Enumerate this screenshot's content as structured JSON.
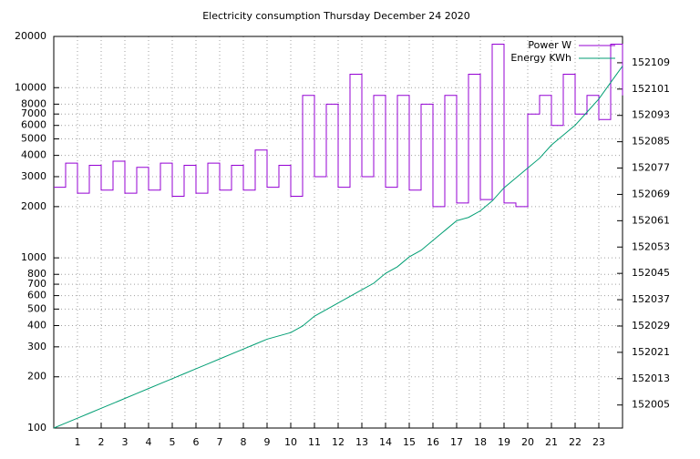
{
  "chart_data": {
    "type": "line",
    "title": "Electricity consumption Thursday December 24 2020",
    "x": [
      0,
      0.5,
      1,
      1.5,
      2,
      2.5,
      3,
      3.5,
      4,
      4.5,
      5,
      5.5,
      6,
      6.5,
      7,
      7.5,
      8,
      8.5,
      9,
      9.5,
      10,
      10.5,
      11,
      11.5,
      12,
      12.5,
      13,
      13.5,
      14,
      14.5,
      15,
      15.5,
      16,
      16.5,
      17,
      17.5,
      18,
      18.5,
      19,
      19.5,
      20,
      20.5,
      21,
      21.5,
      22,
      22.5,
      23,
      23.5,
      24
    ],
    "xlim": [
      0,
      24
    ],
    "xticks": [
      1,
      2,
      3,
      4,
      5,
      6,
      7,
      8,
      9,
      10,
      11,
      12,
      13,
      14,
      15,
      16,
      17,
      18,
      19,
      20,
      21,
      22,
      23
    ],
    "ylim": [
      100,
      20000
    ],
    "ylog": true,
    "yticks": [
      100,
      200,
      300,
      400,
      500,
      600,
      700,
      800,
      1000,
      2000,
      3000,
      4000,
      5000,
      6000,
      7000,
      8000,
      10000,
      20000
    ],
    "y2lim": [
      151998,
      152117
    ],
    "y2ticks": [
      152005,
      152013,
      152021,
      152029,
      152037,
      152045,
      152053,
      152061,
      152069,
      152077,
      152085,
      152093,
      152101,
      152109
    ],
    "grid": true,
    "legend": "top-right",
    "series": [
      {
        "name": "Power W",
        "color": "#9400d3",
        "step": true,
        "values": [
          2600,
          3600,
          2400,
          3500,
          2500,
          3700,
          2400,
          3400,
          2500,
          3600,
          2300,
          3500,
          2400,
          3600,
          2500,
          3500,
          2500,
          4300,
          2600,
          3500,
          2300,
          9000,
          3000,
          8000,
          2600,
          12000,
          3000,
          9000,
          2600,
          9000,
          2500,
          8000,
          2000,
          9000,
          2100,
          12000,
          2200,
          18000,
          2100,
          2000,
          7000,
          9000,
          6000,
          12000,
          7000,
          9000,
          6500,
          18000,
          9000
        ]
      },
      {
        "name": "Energy KWh",
        "color": "#009e73",
        "axis": "y2",
        "values": [
          151998,
          151999.5,
          152001,
          152002.5,
          152004,
          152005.5,
          152007,
          152008.5,
          152010,
          152011.5,
          152013,
          152014.5,
          152016,
          152017.5,
          152019,
          152020.5,
          152022,
          152023.5,
          152025,
          152026,
          152027,
          152029,
          152032,
          152034,
          152036,
          152038,
          152040,
          152042,
          152045,
          152047,
          152050,
          152052,
          152055,
          152058,
          152061,
          152062,
          152064,
          152067,
          152071,
          152074,
          152077,
          152080,
          152084,
          152087,
          152090,
          152094,
          152098,
          152103,
          152108
        ]
      }
    ]
  }
}
